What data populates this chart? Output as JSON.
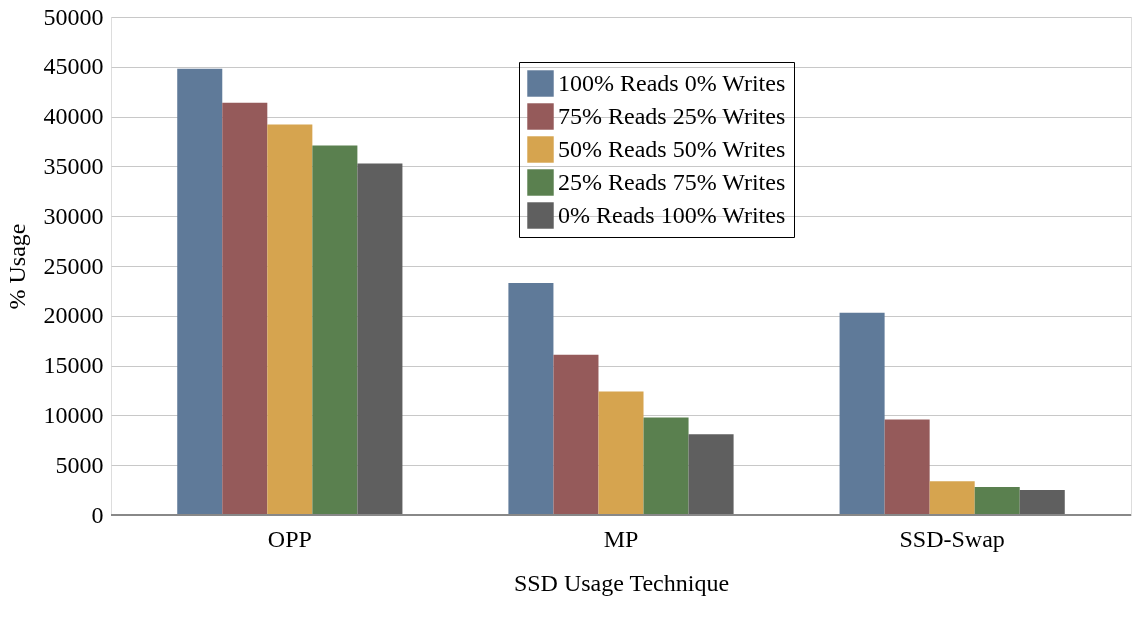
{
  "chart_data": {
    "type": "bar",
    "xlabel": "SSD Usage Technique",
    "ylabel": "% Usage",
    "categories": [
      "OPP",
      "MP",
      "SSD-Swap"
    ],
    "series": [
      {
        "name": "100% Reads 0% Writes",
        "color": "#5f7a99",
        "values": [
          44800,
          23300,
          20300
        ]
      },
      {
        "name": "75% Reads 25% Writes",
        "color": "#955a5a",
        "values": [
          41400,
          16100,
          9600
        ]
      },
      {
        "name": "50% Reads 50% Writes",
        "color": "#d6a44f",
        "values": [
          39200,
          12400,
          3400
        ]
      },
      {
        "name": "25% Reads 75% Writes",
        "color": "#5a804f",
        "values": [
          37100,
          9800,
          2800
        ]
      },
      {
        "name": "0% Reads 100% Writes",
        "color": "#5f5f5f",
        "values": [
          35300,
          8100,
          2500
        ]
      }
    ],
    "ylim": [
      0,
      50000
    ],
    "yticks": [
      0,
      5000,
      10000,
      15000,
      20000,
      25000,
      30000,
      35000,
      40000,
      45000,
      50000
    ],
    "grid": "y",
    "legend": "top right"
  }
}
